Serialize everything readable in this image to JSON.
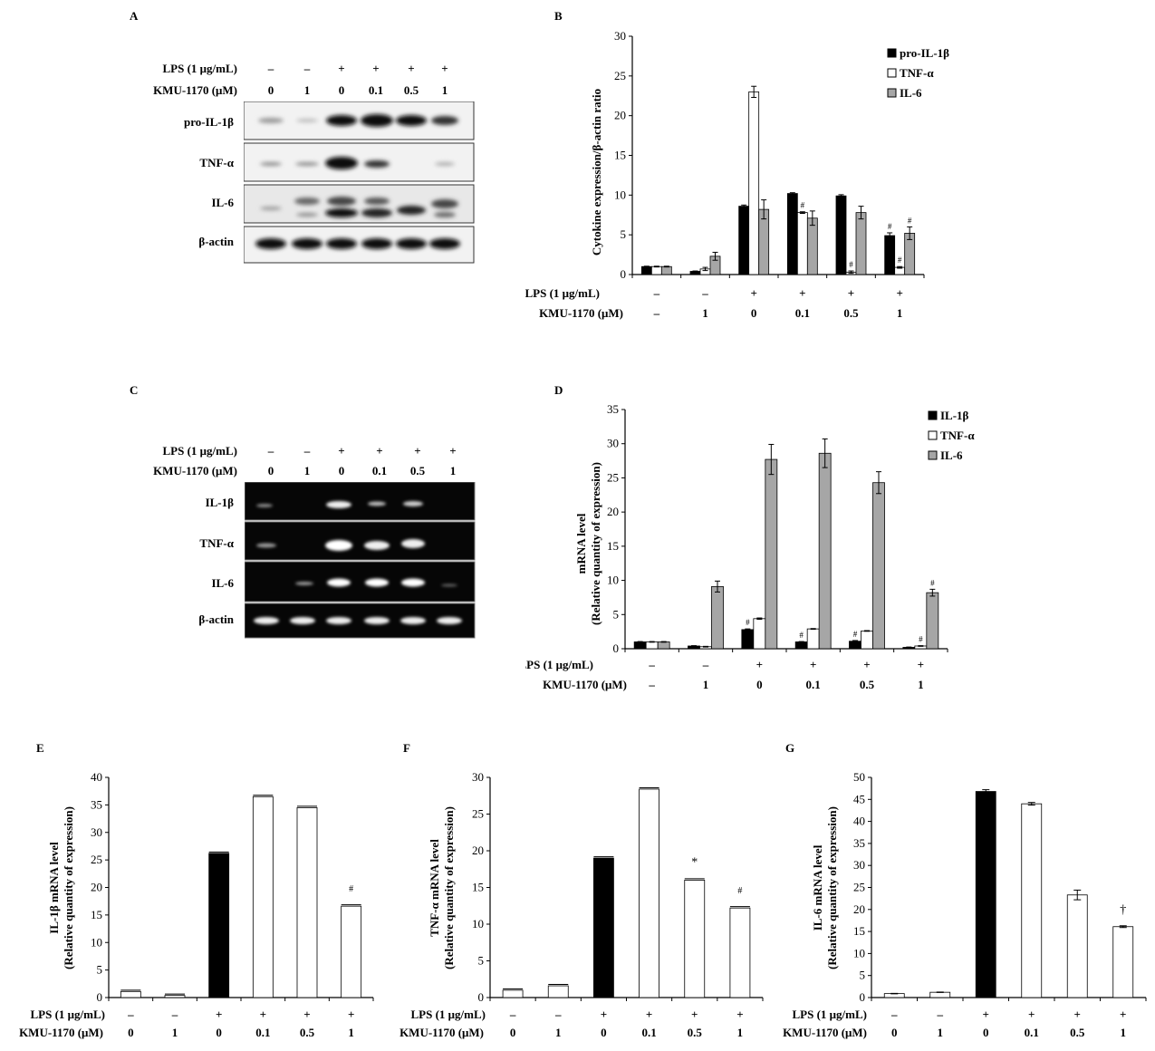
{
  "panels": {
    "a": "A",
    "b": "B",
    "c": "C",
    "d": "D",
    "e": "E",
    "f": "F",
    "g": "G"
  },
  "conditions": {
    "lps_label": "LPS (1 μg/mL)",
    "kmu_label": "KMU-1170 (μM)",
    "lps": [
      "–",
      "–",
      "+",
      "+",
      "+",
      "+"
    ],
    "kmu": [
      "0",
      "1",
      "0",
      "0.1",
      "0.5",
      "1"
    ],
    "kmu_bd": [
      "–",
      "1",
      "0",
      "0.1",
      "0.5",
      "1"
    ]
  },
  "blot_a": {
    "rows": [
      "pro-IL-1β",
      "TNF-α",
      "IL-6",
      "β-actin"
    ]
  },
  "blot_c": {
    "rows": [
      "IL-1β",
      "TNF-α",
      "IL-6",
      "β-actin"
    ]
  },
  "colors": {
    "black": "#000000",
    "white": "#ffffff",
    "gray": "#a6a6a6"
  },
  "chart_data": [
    {
      "id": "B",
      "type": "bar",
      "ylabel": "Cytokine expression/β-actin ratio",
      "ylim": [
        0,
        30
      ],
      "yticks": [
        0,
        5,
        10,
        15,
        20,
        25,
        30
      ],
      "series": [
        {
          "name": "pro-IL-1β",
          "color": "black",
          "values": [
            1.0,
            0.4,
            8.6,
            10.2,
            9.9,
            4.9
          ],
          "errors": [
            0.05,
            0.05,
            0.15,
            0.1,
            0.15,
            0.35
          ],
          "marks": [
            "",
            "",
            "",
            "",
            "",
            "#"
          ]
        },
        {
          "name": "TNF-α",
          "color": "white",
          "values": [
            1.0,
            0.7,
            23.0,
            7.8,
            0.3,
            0.9
          ],
          "errors": [
            0.05,
            0.2,
            0.7,
            0.1,
            0.15,
            0.1
          ],
          "marks": [
            "",
            "",
            "",
            "#",
            "#",
            "#"
          ]
        },
        {
          "name": "IL-6",
          "color": "gray",
          "values": [
            1.0,
            2.3,
            8.2,
            7.1,
            7.8,
            5.2
          ],
          "errors": [
            0.05,
            0.5,
            1.2,
            0.9,
            0.8,
            0.8
          ],
          "marks": [
            "",
            "",
            "",
            "",
            "",
            "#"
          ]
        }
      ]
    },
    {
      "id": "D",
      "type": "bar",
      "ylabel": "mRNA level",
      "ylabel2": "(Relative quantity  of expression)",
      "ylim": [
        0,
        35
      ],
      "yticks": [
        0,
        5,
        10,
        15,
        20,
        25,
        30,
        35
      ],
      "series": [
        {
          "name": "IL-1β",
          "color": "black",
          "values": [
            1.0,
            0.4,
            2.8,
            1.0,
            1.1,
            0.2
          ],
          "errors": [
            0.05,
            0.05,
            0.1,
            0.05,
            0.1,
            0.05
          ],
          "marks": [
            "",
            "",
            "#",
            "#",
            "#",
            ""
          ]
        },
        {
          "name": "TNF-α",
          "color": "white",
          "values": [
            1.0,
            0.3,
            4.4,
            2.9,
            2.6,
            0.4
          ],
          "errors": [
            0.05,
            0.05,
            0.1,
            0.05,
            0.05,
            0.05
          ],
          "marks": [
            "",
            "",
            "",
            "",
            "",
            "#"
          ]
        },
        {
          "name": "IL-6",
          "color": "gray",
          "values": [
            1.0,
            9.1,
            27.7,
            28.6,
            24.3,
            8.2
          ],
          "errors": [
            0.05,
            0.8,
            2.2,
            2.1,
            1.6,
            0.5
          ],
          "marks": [
            "",
            "",
            "",
            "",
            "",
            "#"
          ]
        }
      ]
    },
    {
      "id": "E",
      "type": "bar",
      "ylabel": "IL-1β mRNA level",
      "ylabel2": "(Relative quantity  of expression)",
      "ylim": [
        0,
        40
      ],
      "yticks": [
        0,
        5,
        10,
        15,
        20,
        25,
        30,
        35,
        40
      ],
      "values": [
        1.1,
        0.4,
        26.2,
        36.5,
        34.5,
        16.6
      ],
      "colors": [
        "white",
        "white",
        "black",
        "white",
        "white",
        "white"
      ],
      "marks": [
        "",
        "",
        "",
        "",
        "",
        "#"
      ]
    },
    {
      "id": "F",
      "type": "bar",
      "ylabel": "TNF-α mRNA level",
      "ylabel2": "(Relative quantity  of expression)",
      "ylim": [
        0,
        30
      ],
      "yticks": [
        0,
        5,
        10,
        15,
        20,
        25,
        30
      ],
      "values": [
        1.0,
        1.6,
        19.0,
        28.4,
        16.0,
        12.2
      ],
      "colors": [
        "white",
        "white",
        "black",
        "white",
        "white",
        "white"
      ],
      "marks": [
        "",
        "",
        "",
        "",
        "*",
        "#"
      ]
    },
    {
      "id": "G",
      "type": "bar",
      "ylabel": "IL-6 mRNA level",
      "ylabel2": "(Relative quantity  of expression)",
      "ylim": [
        0,
        50
      ],
      "yticks": [
        0,
        5,
        10,
        15,
        20,
        25,
        30,
        35,
        40,
        45,
        50
      ],
      "values": [
        0.9,
        1.2,
        46.8,
        44.0,
        23.3,
        16.1
      ],
      "errors": [
        0.05,
        0.05,
        0.4,
        0.3,
        1.1,
        0.2
      ],
      "colors": [
        "white",
        "white",
        "black",
        "white",
        "white",
        "white"
      ],
      "marks": [
        "",
        "",
        "",
        "",
        "",
        "†"
      ]
    }
  ]
}
